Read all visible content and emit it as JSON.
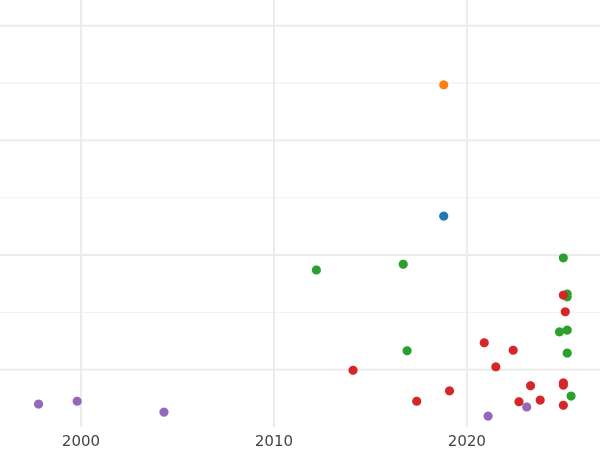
{
  "chart_data": {
    "type": "scatter",
    "title": "",
    "xlabel": "",
    "ylabel": "",
    "xlim": [
      1995.8,
      2026.9
    ],
    "ylim": [
      0,
      7.45
    ],
    "grid": true,
    "x_ticks": [
      2000,
      2010,
      2020
    ],
    "x_tick_labels": [
      "2000",
      "2010",
      "2020"
    ],
    "y_gridlines": [
      1,
      2,
      3,
      4,
      5,
      6,
      7
    ],
    "legend": "none",
    "series": [
      {
        "color": "#9467bd",
        "points": [
          [
            1997.8,
            0.4
          ],
          [
            1999.8,
            0.45
          ],
          [
            2004.3,
            0.26
          ],
          [
            2021.1,
            0.19
          ],
          [
            2023.1,
            0.35
          ]
        ]
      },
      {
        "color": "#ff7f0e",
        "points": [
          [
            2018.8,
            5.97
          ]
        ]
      },
      {
        "color": "#1f77b4",
        "points": [
          [
            2018.8,
            3.68
          ]
        ]
      },
      {
        "color": "#2ca02c",
        "points": [
          [
            2012.2,
            2.74
          ],
          [
            2016.7,
            2.84
          ],
          [
            2025.0,
            2.95
          ],
          [
            2025.2,
            2.32
          ],
          [
            2025.2,
            2.27
          ],
          [
            2024.8,
            1.66
          ],
          [
            2025.2,
            1.69
          ],
          [
            2016.9,
            1.33
          ],
          [
            2025.2,
            1.29
          ],
          [
            2025.4,
            0.54
          ]
        ]
      },
      {
        "color": "#d62728",
        "points": [
          [
            2025.0,
            2.3
          ],
          [
            2025.1,
            2.01
          ],
          [
            2020.9,
            1.47
          ],
          [
            2022.4,
            1.34
          ],
          [
            2014.1,
            0.99
          ],
          [
            2021.5,
            1.05
          ],
          [
            2019.1,
            0.63
          ],
          [
            2017.4,
            0.45
          ],
          [
            2023.3,
            0.72
          ],
          [
            2025.0,
            0.77
          ],
          [
            2025.0,
            0.73
          ],
          [
            2022.7,
            0.44
          ],
          [
            2023.8,
            0.47
          ],
          [
            2025.0,
            0.38
          ]
        ]
      }
    ]
  }
}
